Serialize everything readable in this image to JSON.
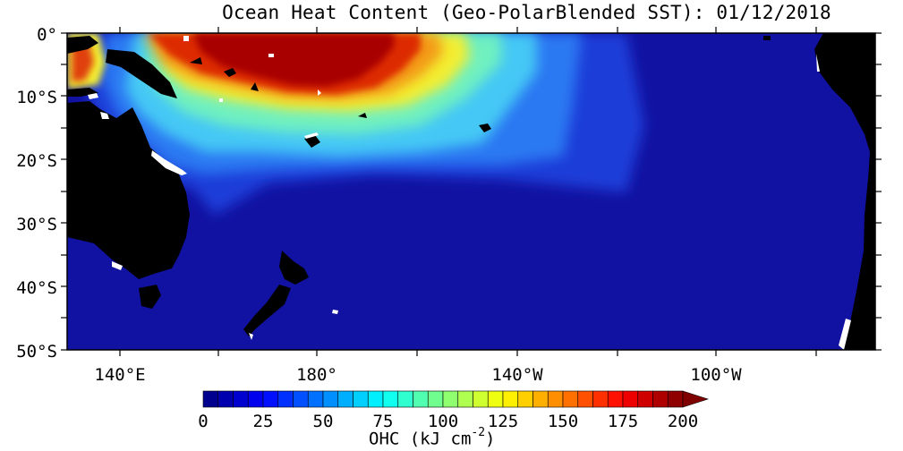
{
  "title": "Ocean Heat Content (Geo-PolarBlended SST): 01/12/2018",
  "axes": {
    "lat_labels": [
      "0°",
      "10°S",
      "20°S",
      "30°S",
      "40°S",
      "50°S"
    ],
    "lon_labels": [
      "140°E",
      "180°",
      "140°W",
      "100°W"
    ]
  },
  "colorbar": {
    "ticks": [
      "0",
      "25",
      "50",
      "75",
      "100",
      "125",
      "150",
      "175",
      "200"
    ],
    "label_main": "OHC (kJ cm",
    "label_exp": "-2",
    "label_close": ")",
    "range": [
      0,
      200
    ],
    "extend": "max",
    "colormap": "jet"
  },
  "colors": {
    "ocean_background": "#1414a0",
    "land": "#000000",
    "missing": "#ffffff",
    "warm_pool": "#b40000"
  }
}
